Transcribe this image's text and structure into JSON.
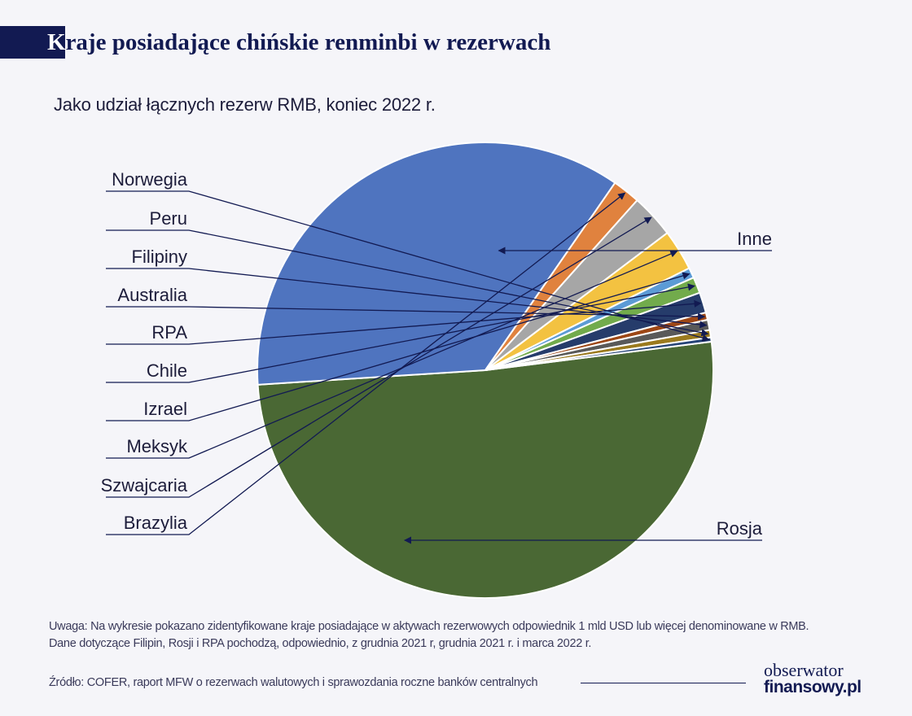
{
  "header": {
    "title_first": "K",
    "title_rest": "raje posiadające chińskie renminbi w rezerwach",
    "subtitle": "Jako udział łącznych rezerw RMB, koniec 2022 r."
  },
  "chart_data": {
    "type": "pie",
    "title": "Kraje posiadające chińskie renminbi w rezerwach",
    "subtitle": "Jako udział łącznych rezerw RMB, koniec 2022 r.",
    "unit": "% łącznych rezerw RMB",
    "slices": [
      {
        "label": "Inne",
        "value": 49.2,
        "color": "#4a6834"
      },
      {
        "label": "Rosja",
        "value": 34.4,
        "color": "#4f74bf"
      },
      {
        "label": "Brazylia",
        "value": 1.9,
        "color": "#e0823e"
      },
      {
        "label": "Szwajcaria",
        "value": 3.0,
        "color": "#a6a6a6"
      },
      {
        "label": "Meksyk",
        "value": 2.8,
        "color": "#f3c241"
      },
      {
        "label": "Izrael",
        "value": 0.7,
        "color": "#5c9bd6"
      },
      {
        "label": "Chile",
        "value": 1.1,
        "color": "#72ab4c"
      },
      {
        "label": "RPA",
        "value": 1.4,
        "color": "#263c6b"
      },
      {
        "label": "Australia",
        "value": 0.5,
        "color": "#9d4716"
      },
      {
        "label": "Filipiny",
        "value": 0.7,
        "color": "#595959"
      },
      {
        "label": "Peru",
        "value": 0.5,
        "color": "#9b7a1e"
      },
      {
        "label": "Norwegia",
        "value": 0.3,
        "color": "#264478"
      }
    ],
    "start_angle_deg": 0,
    "direction": "clockwise",
    "legend": "none"
  },
  "footer": {
    "note_line1": "Uwaga: Na wykresie pokazano zidentyfikowane kraje posiadające w aktywach rezerwowych odpowiednik 1 mld USD lub więcej denominowane w RMB.",
    "note_line2": "Dane dotyczące Filipin, Rosji i RPA pochodzą, odpowiednio, z grudnia 2021 r, grudnia 2021 r. i marca 2022 r.",
    "source": "Źródło: COFER, raport MFW o rezerwach walutowych i sprawozdania roczne banków centralnych"
  },
  "logo": {
    "line1": "obserwator",
    "line2": "finansowy.pl"
  },
  "colors": {
    "brand": "#121a52",
    "background": "#f5f5f9"
  }
}
